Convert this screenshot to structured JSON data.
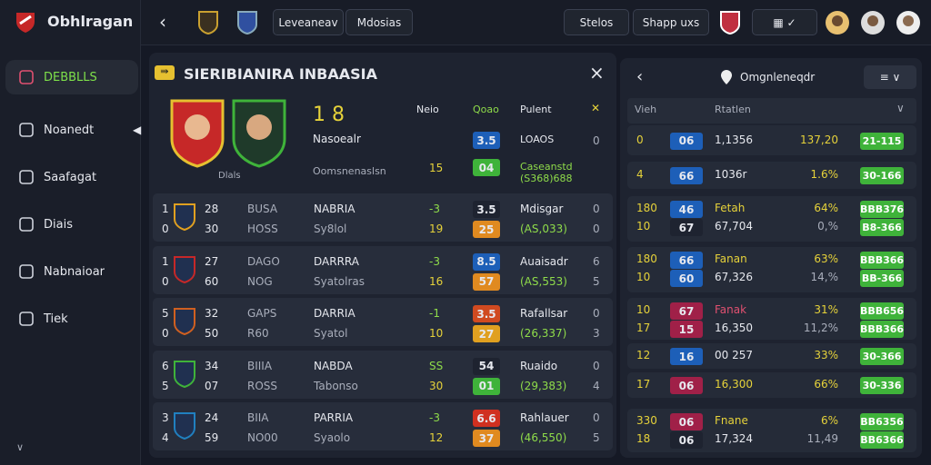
{
  "brand": "Obhlragan",
  "nav": [
    "DEBBLLS",
    "Noanedt",
    "Saafagat",
    "Diais",
    "Nabnaioar",
    "Tiek"
  ],
  "topbar": {
    "tabs": [
      "Leveaneav",
      "Mdosias"
    ],
    "buttons": [
      "Stelos",
      "Shapp uxs"
    ]
  },
  "match": {
    "title": "SIERIBIANIRA INBAASIA",
    "badge_caption": "Dlals",
    "score": "1 8",
    "name": "Nasoealr",
    "subtitle": "Oomsnenaslsn",
    "columns": [
      "Neio",
      "Qoao",
      "Pulent"
    ],
    "header_rows": [
      [
        "",
        "3.5",
        "LOAOS",
        "0"
      ],
      [
        "15",
        "04",
        "Caseanstd (S368)688",
        ""
      ]
    ],
    "rows": [
      {
        "rank": [
          "1",
          "0"
        ],
        "num": [
          "28",
          "30"
        ],
        "code": [
          "BUSA",
          "HOSS"
        ],
        "name": [
          "NABRIA",
          "Sy8lol"
        ],
        "diff": [
          "-3",
          "19"
        ],
        "box": [
          "3.5",
          "25"
        ],
        "info": [
          "Mdisgar",
          "(AS,033)"
        ],
        "end": [
          "0",
          "0"
        ]
      },
      {
        "rank": [
          "1",
          "0"
        ],
        "num": [
          "27",
          "60"
        ],
        "code": [
          "DAGO",
          "NOG"
        ],
        "name": [
          "DARRRA",
          "Syatolras"
        ],
        "diff": [
          "-3",
          "16"
        ],
        "box": [
          "8.5",
          "57"
        ],
        "info": [
          "Auaisadr",
          "(AS,553)"
        ],
        "end": [
          "6",
          "5"
        ]
      },
      {
        "rank": [
          "5",
          "0"
        ],
        "num": [
          "32",
          "50"
        ],
        "code": [
          "GAPS",
          "R60"
        ],
        "name": [
          "DARRIA",
          "Syatol"
        ],
        "diff": [
          "-1",
          "10"
        ],
        "box": [
          "3.5",
          "27"
        ],
        "info": [
          "Rafallsar",
          "(26,337)"
        ],
        "end": [
          "0",
          "3"
        ]
      },
      {
        "rank": [
          "6",
          "5"
        ],
        "num": [
          "34",
          "07"
        ],
        "code": [
          "BIIIA",
          "ROSS"
        ],
        "name": [
          "NABDA",
          "Tabonso"
        ],
        "diff": [
          "SS",
          "30"
        ],
        "box": [
          "54",
          "01"
        ],
        "info": [
          "Ruaido",
          "(29,383)"
        ],
        "end": [
          "0",
          "4"
        ]
      },
      {
        "rank": [
          "3",
          "4"
        ],
        "num": [
          "24",
          "59"
        ],
        "code": [
          "BIIA",
          "NO00"
        ],
        "name": [
          "PARRIA",
          "Syaolo"
        ],
        "diff": [
          "-3",
          "12"
        ],
        "box": [
          "6.6",
          "37"
        ],
        "info": [
          "Rahlauer",
          "(46,550)"
        ],
        "end": [
          "0",
          "5"
        ]
      }
    ]
  },
  "side": {
    "title": "Omgnleneqdr",
    "columns": [
      "Vieh",
      "Rtatlen"
    ],
    "rows": [
      {
        "a": [
          "0"
        ],
        "b": [
          "06"
        ],
        "c": [
          "1,1356"
        ],
        "d": [
          "137,20"
        ],
        "e": [
          "21-115"
        ]
      },
      {
        "a": [
          "4"
        ],
        "b": [
          "66"
        ],
        "c": [
          "1036r"
        ],
        "d": [
          "1.6%"
        ],
        "e": [
          "30-166"
        ]
      },
      {
        "a": [
          "180",
          "10"
        ],
        "b": [
          "46",
          "67"
        ],
        "c": [
          "Fetah",
          "67,704"
        ],
        "d": [
          "64%",
          "0,%"
        ],
        "e": [
          "BBB376",
          "B8-366"
        ]
      },
      {
        "a": [
          "180",
          "10"
        ],
        "b": [
          "66",
          "60"
        ],
        "c": [
          "Fanan",
          "67,326"
        ],
        "d": [
          "63%",
          "14,%"
        ],
        "e": [
          "BBB366",
          "BB-366"
        ]
      },
      {
        "a": [
          "10",
          "17"
        ],
        "b": [
          "67",
          "15"
        ],
        "c": [
          "Fanak",
          "16,350"
        ],
        "d": [
          "31%",
          "11,2%"
        ],
        "e": [
          "BBB656",
          "BBB366"
        ]
      },
      {
        "a": [
          "12"
        ],
        "b": [
          "16"
        ],
        "c": [
          "00 257"
        ],
        "d": [
          "33%"
        ],
        "e": [
          "30-366"
        ]
      },
      {
        "a": [
          "17"
        ],
        "b": [
          "06"
        ],
        "c": [
          "16,300"
        ],
        "d": [
          "66%"
        ],
        "e": [
          "30-336"
        ]
      },
      {
        "a": [
          "330",
          "18"
        ],
        "b": [
          "06",
          "06"
        ],
        "c": [
          "Fnane",
          "17,324"
        ],
        "d": [
          "6%",
          "11,49"
        ],
        "e": [
          "BB6356",
          "BB6366"
        ]
      }
    ]
  }
}
